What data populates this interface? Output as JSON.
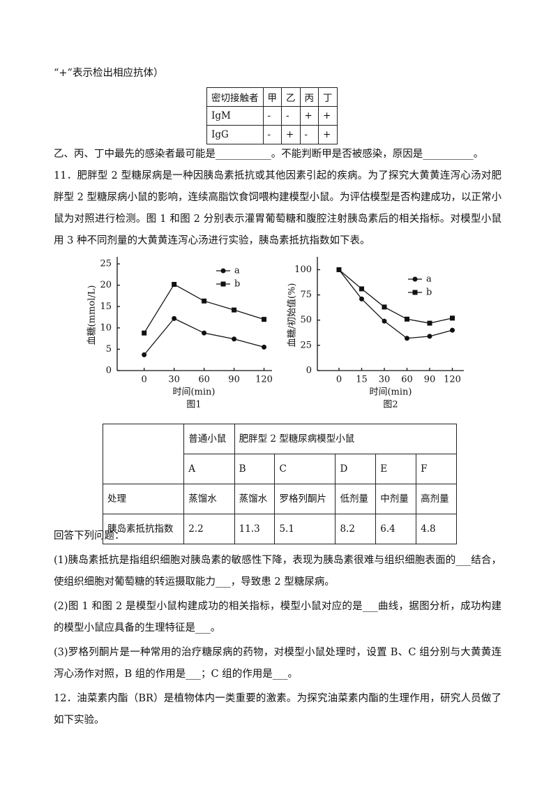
{
  "intro": "“+”表示检出相应抗体）",
  "table1": {
    "rows": [
      [
        "密切接触者",
        "甲",
        "乙",
        "丙",
        "丁"
      ],
      [
        "IgM",
        "-",
        "-",
        "+",
        "+"
      ],
      [
        "IgG",
        "-",
        "+",
        "-",
        "+"
      ]
    ]
  },
  "q10_tail": "乙、丙、丁中最先的感染者最可能是___________。不能判断甲是否被感染，原因是__________。",
  "q11": "11．肥胖型 2 型糖尿病是一种因胰岛素抵抗或其他因素引起的疾病。为了探究大黄黄连泻心汤对肥胖型 2 型糖尿病小鼠的影响，连续高脂饮食饲喂构建模型小鼠。为评估模型是否构建成功，以正常小鼠为对照进行检测。图 1 和图 2 分别表示灌胃葡萄糖和腹腔注射胰岛素后的相关指标。对模型小鼠用 3 种不同剂量的大黄黄连泻心汤进行实验，胰岛素抵抗指数如下表。",
  "chart_data": [
    {
      "type": "line",
      "caption": "图1",
      "x_label": "时间(min)",
      "y_label": "血糖(mmol/L)",
      "x": [
        0,
        30,
        60,
        90,
        120
      ],
      "xlim": [
        -27,
        128
      ],
      "xticks": [
        0,
        30,
        60,
        90,
        120
      ],
      "ylim": [
        0,
        26
      ],
      "yticks": [
        0,
        5,
        10,
        15,
        20,
        25
      ],
      "series": [
        {
          "name": "a",
          "color": "#111111",
          "marker": "circle",
          "values": [
            3.7,
            12.2,
            8.8,
            7.4,
            5.5
          ]
        },
        {
          "name": "b",
          "color": "#111111",
          "marker": "square",
          "values": [
            8.8,
            20.2,
            16.3,
            14.2,
            12.0
          ]
        }
      ]
    },
    {
      "type": "line",
      "caption": "图2",
      "x_label": "时间(min)",
      "y_label": "血糖/初始值(%)",
      "categories": [
        "0",
        "15",
        "30",
        "60",
        "90",
        "120"
      ],
      "ylim": [
        0,
        110
      ],
      "yticks": [
        0,
        25,
        50,
        75,
        100
      ],
      "series": [
        {
          "name": "a",
          "color": "#111111",
          "marker": "circle",
          "values": [
            100,
            71,
            49,
            32,
            34,
            40
          ]
        },
        {
          "name": "b",
          "color": "#111111",
          "marker": "square",
          "values": [
            100,
            81,
            63,
            51,
            47,
            52
          ]
        }
      ]
    }
  ],
  "table2": {
    "header": [
      "普通小鼠",
      "肥胖型 2 型糖尿病模型小鼠"
    ],
    "groups": [
      "A",
      "B",
      "C",
      "D",
      "E",
      "F"
    ],
    "treatment": [
      "处理",
      "蒸馏水",
      "蒸馏水",
      "罗格列酮片",
      "低剂量",
      "中剂量",
      "高剂量"
    ],
    "index": [
      "胰岛素抵抗指数",
      2.2,
      11.3,
      5.1,
      8.2,
      6.4,
      4.8
    ]
  },
  "questions": [
    "回答下列问题：",
    "(1)胰岛素抵抗是指组织细胞对胰岛素的敏感性下降，表现为胰岛素很难与组织细胞表面的___结合，使组织细胞对葡萄糖的转运摄取能力___，导致患 2 型糖尿病。",
    "(2)图 1 和图 2 是模型小鼠构建成功的相关指标，模型小鼠对应的是___曲线，据图分析，成功构建的模型小鼠应具备的生理特征是___。",
    "(3)罗格列酮片是一种常用的治疗糖尿病的药物，对模型小鼠处理时，设置 B、C 组分别与大黄黄连泻心汤作对照，B 组的作用是___；C 组的作用是___。",
    "12．油菜素内酯（BR）是植物体内一类重要的激素。为探究油菜素内酯的生理作用，研究人员做了如下实验。"
  ]
}
